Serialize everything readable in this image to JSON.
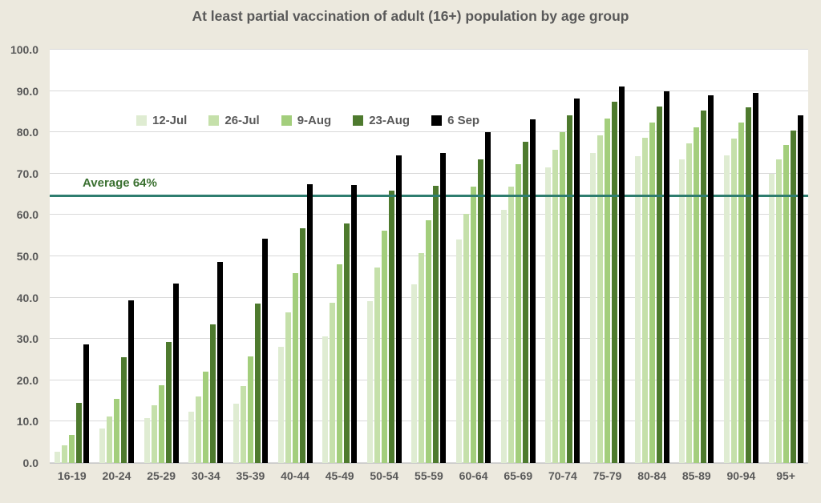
{
  "title": "At least partial vaccination of adult (16+) population by age group",
  "average_line": {
    "label": "Average 64%",
    "value": 64.3,
    "line_color": "#2E7D6F",
    "label_color": "#3A7030"
  },
  "chart_data": {
    "type": "bar",
    "title": "At least partial vaccination of adult (16+) population by age group",
    "xlabel": "",
    "ylabel": "",
    "ylim": [
      0,
      100
    ],
    "ytick_values": [
      0,
      10,
      20,
      30,
      40,
      50,
      60,
      70,
      80,
      90,
      100
    ],
    "ytick_format": "one-decimal",
    "grid": "horizontal",
    "legend_position": "top-left-inside",
    "background": "#ffffff",
    "categories": [
      "16-19",
      "20-24",
      "25-29",
      "30-34",
      "35-39",
      "40-44",
      "45-49",
      "50-54",
      "55-59",
      "60-64",
      "65-69",
      "70-74",
      "75-79",
      "80-84",
      "85-89",
      "90-94",
      "95+"
    ],
    "series": [
      {
        "name": "12-Jul",
        "color": "#DFECD2",
        "values": [
          2.8,
          8.3,
          10.8,
          12.5,
          14.3,
          28.2,
          30.6,
          39.2,
          43.2,
          54.0,
          61.3,
          71.6,
          75.0,
          74.3,
          73.4,
          74.5,
          70.0
        ]
      },
      {
        "name": "26-Jul",
        "color": "#C5E0AA",
        "values": [
          4.2,
          11.2,
          14.0,
          16.0,
          18.6,
          36.4,
          38.7,
          47.2,
          50.8,
          60.3,
          66.8,
          75.8,
          79.2,
          78.6,
          77.3,
          78.5,
          73.4
        ]
      },
      {
        "name": "9-Aug",
        "color": "#A3CE7C",
        "values": [
          6.7,
          15.5,
          18.8,
          22.0,
          25.8,
          46.0,
          48.0,
          56.2,
          58.8,
          66.8,
          72.2,
          80.0,
          83.3,
          82.4,
          81.3,
          82.3,
          77.0
        ]
      },
      {
        "name": "23-Aug",
        "color": "#4E7A2E",
        "values": [
          14.5,
          25.5,
          29.2,
          33.6,
          38.5,
          56.8,
          57.9,
          65.8,
          67.1,
          73.4,
          77.8,
          84.2,
          87.4,
          86.3,
          85.3,
          86.0,
          80.5
        ]
      },
      {
        "name": "6 Sep",
        "color": "#000000",
        "values": [
          28.7,
          39.4,
          43.4,
          48.7,
          54.3,
          67.5,
          67.2,
          74.5,
          75.0,
          80.0,
          83.2,
          88.2,
          91.0,
          89.9,
          88.9,
          89.5,
          84.1
        ]
      }
    ]
  }
}
